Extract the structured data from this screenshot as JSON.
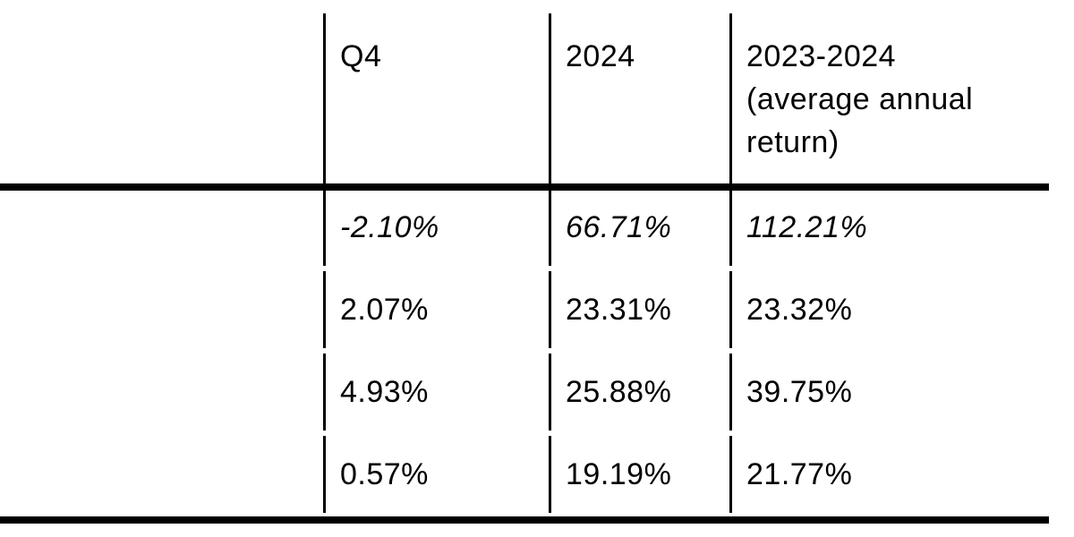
{
  "accent_colors": {
    "text": "#000000",
    "rules": "#000000",
    "background": "#ffffff"
  },
  "table": {
    "headers": [
      {
        "label": ""
      },
      {
        "label": "Q4"
      },
      {
        "label": "2024"
      },
      {
        "label": "2023-2024 (average annual return)",
        "lines": [
          "2023-2024",
          "(average annual",
          "return)"
        ]
      }
    ],
    "rows": [
      {
        "label": "",
        "q4": "-2.10%",
        "y2024": "66.71%",
        "avg": "112.21%"
      },
      {
        "label": "",
        "q4": "2.07%",
        "y2024": "23.31%",
        "avg": "23.32%"
      },
      {
        "label": "",
        "q4": "4.93%",
        "y2024": "25.88%",
        "avg": "39.75%"
      },
      {
        "label": "",
        "q4": "0.57%",
        "y2024": "19.19%",
        "avg": "21.77%"
      }
    ]
  },
  "chart_data": {
    "type": "table",
    "title": "",
    "columns": [
      "",
      "Q4",
      "2024",
      "2023-2024 (average annual return)"
    ],
    "rows": [
      [
        "",
        "-2.10%",
        "66.71%",
        "112.21%"
      ],
      [
        "",
        "2.07%",
        "23.31%",
        "23.32%"
      ],
      [
        "",
        "4.93%",
        "25.88%",
        "39.75%"
      ],
      [
        "",
        "0.57%",
        "19.19%",
        "21.77%"
      ]
    ],
    "style_notes": {
      "first_data_row_italic": true,
      "row_label_column_empty": true,
      "grid": "vertical separators between columns, thick rules under header and at table bottom"
    }
  }
}
